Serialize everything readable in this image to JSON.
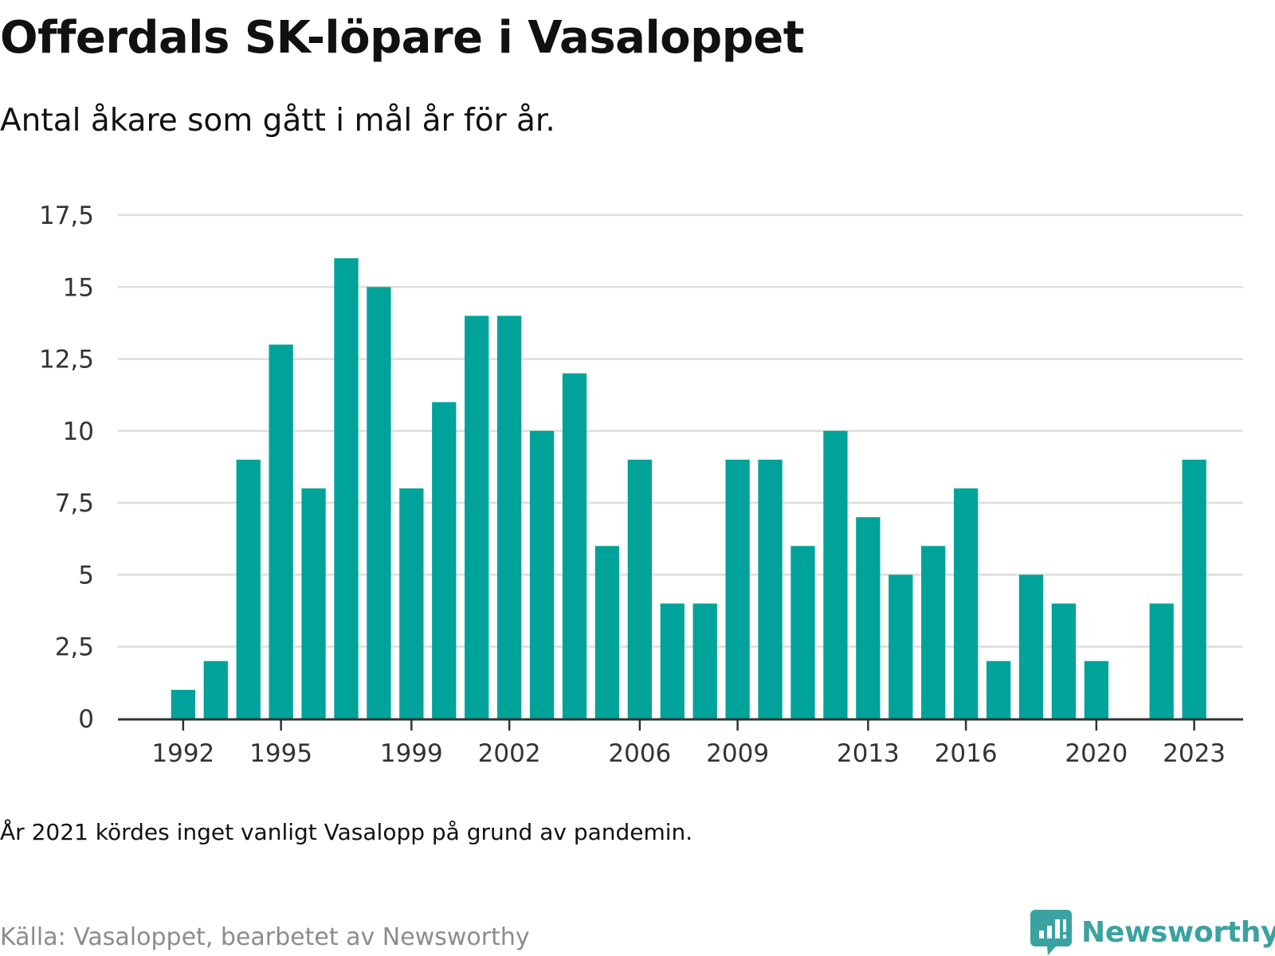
{
  "title": "Offerdals SK-löpare i Vasaloppet",
  "subtitle": "Antal åkare som gått i mål år för år.",
  "note": "År 2021 kördes inget vanligt Vasalopp på grund av pandemin.",
  "source": "Källa: Vasaloppet, bearbetet av Newsworthy",
  "brand": {
    "name": "Newsworthy",
    "icon": "newsworthy-logo-icon",
    "color": "#3aa2a0"
  },
  "colors": {
    "bar": "#00a399",
    "grid": "#dddddd",
    "axis": "#333333",
    "tick_text": "#333333"
  },
  "chart_data": {
    "type": "bar",
    "x": [
      1992,
      1993,
      1994,
      1995,
      1996,
      1997,
      1998,
      1999,
      2000,
      2001,
      2002,
      2003,
      2004,
      2005,
      2006,
      2007,
      2008,
      2009,
      2010,
      2011,
      2012,
      2013,
      2014,
      2015,
      2016,
      2017,
      2018,
      2019,
      2020,
      2021,
      2022,
      2023
    ],
    "values": [
      1,
      2,
      9,
      13,
      8,
      16,
      15,
      8,
      11,
      14,
      14,
      10,
      12,
      6,
      9,
      4,
      4,
      9,
      9,
      6,
      10,
      7,
      5,
      6,
      8,
      2,
      5,
      4,
      2,
      null,
      4,
      9
    ],
    "x_ticks": [
      1992,
      1995,
      1999,
      2002,
      2006,
      2009,
      2013,
      2016,
      2020,
      2023
    ],
    "x_tick_labels": [
      "1992",
      "1995",
      "1999",
      "2002",
      "2006",
      "2009",
      "2013",
      "2016",
      "2020",
      "2023"
    ],
    "x_range": [
      1990,
      2024.5
    ],
    "y_ticks": [
      0,
      2.5,
      5,
      7.5,
      10,
      12.5,
      15,
      17.5
    ],
    "y_tick_labels": [
      "0",
      "2,5",
      "5",
      "7,5",
      "10",
      "12,5",
      "15",
      "17,5"
    ],
    "ylim": [
      0,
      17.5
    ],
    "xlabel": "",
    "ylabel": "",
    "grid": true,
    "legend": "none"
  }
}
